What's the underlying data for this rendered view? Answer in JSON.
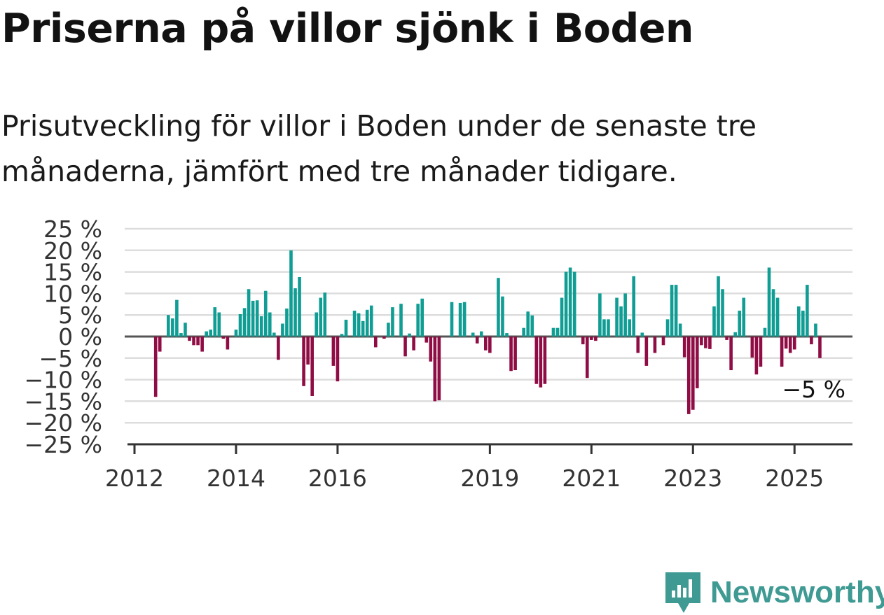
{
  "header": {
    "title": "Priserna på villor sjönk i Boden",
    "subtitle": "Prisutveckling för villor i Boden under de senaste tre månaderna, jämfört med tre månader tidigare."
  },
  "brand": {
    "name": "Newsworthy",
    "icon": "bar-chart-speech-bubble-icon",
    "color": "#3e9a93"
  },
  "chart_data": {
    "type": "bar",
    "title": "",
    "xlabel": "",
    "ylabel": "",
    "ylim": [
      -25,
      25
    ],
    "y_ticks": [
      25,
      20,
      15,
      10,
      5,
      0,
      -5,
      -10,
      -15,
      -20,
      -25
    ],
    "y_tick_labels": [
      "25 %",
      "20 %",
      "15 %",
      "10 %",
      "5 %",
      "0 %",
      "−5 %",
      "−10 %",
      "−15 %",
      "−20 %",
      "−25 %"
    ],
    "x_tick_labels": [
      "2012",
      "2014",
      "2016",
      "2019",
      "2021",
      "2023",
      "2025"
    ],
    "x_tick_years": [
      2012,
      2014,
      2016,
      2019,
      2021,
      2023,
      2025
    ],
    "x_range": [
      "2012-01",
      "2026-01"
    ],
    "grid": true,
    "colors": {
      "positive": "#109d94",
      "negative": "#8f0d44",
      "grid": "#dddddd",
      "axis": "#333333"
    },
    "last_value_label": "−5 %",
    "series": [
      {
        "values": [
          [
            "2012-06",
            -14
          ],
          [
            "2012-07",
            -3.5
          ],
          [
            "2012-09",
            5
          ],
          [
            "2012-10",
            4.2
          ],
          [
            "2012-11",
            8.5
          ],
          [
            "2012-12",
            0.8
          ],
          [
            "2013-01",
            3.2
          ],
          [
            "2013-02",
            -1
          ],
          [
            "2013-03",
            -2
          ],
          [
            "2013-04",
            -2
          ],
          [
            "2013-05",
            -3.5
          ],
          [
            "2013-06",
            1.2
          ],
          [
            "2013-07",
            1.6
          ],
          [
            "2013-08",
            6.8
          ],
          [
            "2013-09",
            5.6
          ],
          [
            "2013-10",
            -0.5
          ],
          [
            "2013-11",
            -3
          ],
          [
            "2014-01",
            1.6
          ],
          [
            "2014-02",
            5.2
          ],
          [
            "2014-03",
            6.6
          ],
          [
            "2014-04",
            11
          ],
          [
            "2014-05",
            8.3
          ],
          [
            "2014-06",
            8.4
          ],
          [
            "2014-07",
            4.7
          ],
          [
            "2014-08",
            10.6
          ],
          [
            "2014-09",
            5.6
          ],
          [
            "2014-10",
            0.9
          ],
          [
            "2014-11",
            -5.4
          ],
          [
            "2014-12",
            3
          ],
          [
            "2015-01",
            6.5
          ],
          [
            "2015-02",
            20
          ],
          [
            "2015-03",
            11.2
          ],
          [
            "2015-04",
            13.8
          ],
          [
            "2015-05",
            -11.5
          ],
          [
            "2015-06",
            -6.5
          ],
          [
            "2015-07",
            -13.8
          ],
          [
            "2015-08",
            5.6
          ],
          [
            "2015-09",
            9
          ],
          [
            "2015-10",
            10.2
          ],
          [
            "2015-12",
            -6.8
          ],
          [
            "2016-01",
            -10.4
          ],
          [
            "2016-02",
            0.6
          ],
          [
            "2016-03",
            3.9
          ],
          [
            "2016-05",
            6
          ],
          [
            "2016-06",
            5.4
          ],
          [
            "2016-07",
            3.6
          ],
          [
            "2016-08",
            6.2
          ],
          [
            "2016-09",
            7.2
          ],
          [
            "2016-10",
            -2.5
          ],
          [
            "2016-12",
            -0.5
          ],
          [
            "2017-01",
            3.2
          ],
          [
            "2017-02",
            6.8
          ],
          [
            "2017-04",
            7.6
          ],
          [
            "2017-05",
            -4.6
          ],
          [
            "2017-06",
            0.7
          ],
          [
            "2017-07",
            -3.2
          ],
          [
            "2017-08",
            7.6
          ],
          [
            "2017-09",
            8.8
          ],
          [
            "2017-10",
            -1.4
          ],
          [
            "2017-11",
            -5.8
          ],
          [
            "2017-12",
            -15
          ],
          [
            "2018-01",
            -14.8
          ],
          [
            "2018-04",
            8
          ],
          [
            "2018-06",
            7.8
          ],
          [
            "2018-07",
            8
          ],
          [
            "2018-09",
            0.9
          ],
          [
            "2018-10",
            -1.6
          ],
          [
            "2018-11",
            1.2
          ],
          [
            "2018-12",
            -3.2
          ],
          [
            "2019-01",
            -3.8
          ],
          [
            "2019-03",
            13.6
          ],
          [
            "2019-04",
            9.3
          ],
          [
            "2019-05",
            0.8
          ],
          [
            "2019-06",
            -8
          ],
          [
            "2019-07",
            -7.8
          ],
          [
            "2019-09",
            2
          ],
          [
            "2019-10",
            5.8
          ],
          [
            "2019-11",
            4.9
          ],
          [
            "2019-12",
            -11
          ],
          [
            "2020-01",
            -11.8
          ],
          [
            "2020-02",
            -11
          ],
          [
            "2020-04",
            2
          ],
          [
            "2020-05",
            2
          ],
          [
            "2020-06",
            9
          ],
          [
            "2020-07",
            15
          ],
          [
            "2020-08",
            16
          ],
          [
            "2020-09",
            15
          ],
          [
            "2020-11",
            -1.8
          ],
          [
            "2020-12",
            -9.6
          ],
          [
            "2021-01",
            -0.8
          ],
          [
            "2021-02",
            -1
          ],
          [
            "2021-03",
            10
          ],
          [
            "2021-04",
            4
          ],
          [
            "2021-05",
            4
          ],
          [
            "2021-07",
            9
          ],
          [
            "2021-08",
            7
          ],
          [
            "2021-09",
            10
          ],
          [
            "2021-10",
            4
          ],
          [
            "2021-11",
            14
          ],
          [
            "2021-12",
            -3.8
          ],
          [
            "2022-01",
            0.9
          ],
          [
            "2022-02",
            -6.8
          ],
          [
            "2022-04",
            -3.8
          ],
          [
            "2022-06",
            -2
          ],
          [
            "2022-07",
            4
          ],
          [
            "2022-08",
            12
          ],
          [
            "2022-09",
            12
          ],
          [
            "2022-10",
            3
          ],
          [
            "2022-11",
            -4.8
          ],
          [
            "2022-12",
            -18
          ],
          [
            "2023-01",
            -17
          ],
          [
            "2023-02",
            -12
          ],
          [
            "2023-03",
            -2
          ],
          [
            "2023-04",
            -2.7
          ],
          [
            "2023-05",
            -2.9
          ],
          [
            "2023-06",
            7
          ],
          [
            "2023-07",
            14
          ],
          [
            "2023-08",
            11
          ],
          [
            "2023-09",
            -0.8
          ],
          [
            "2023-10",
            -7.8
          ],
          [
            "2023-11",
            1
          ],
          [
            "2023-12",
            6
          ],
          [
            "2024-01",
            9
          ],
          [
            "2024-03",
            -4.9
          ],
          [
            "2024-04",
            -8.8
          ],
          [
            "2024-05",
            -7
          ],
          [
            "2024-06",
            2
          ],
          [
            "2024-07",
            16
          ],
          [
            "2024-08",
            11
          ],
          [
            "2024-09",
            9
          ],
          [
            "2024-10",
            -7
          ],
          [
            "2024-11",
            -2.8
          ],
          [
            "2024-12",
            -3.8
          ],
          [
            "2025-01",
            -3
          ],
          [
            "2025-02",
            7
          ],
          [
            "2025-03",
            6
          ],
          [
            "2025-04",
            12
          ],
          [
            "2025-05",
            -1.8
          ],
          [
            "2025-06",
            3
          ],
          [
            "2025-07",
            -5
          ]
        ]
      }
    ]
  }
}
